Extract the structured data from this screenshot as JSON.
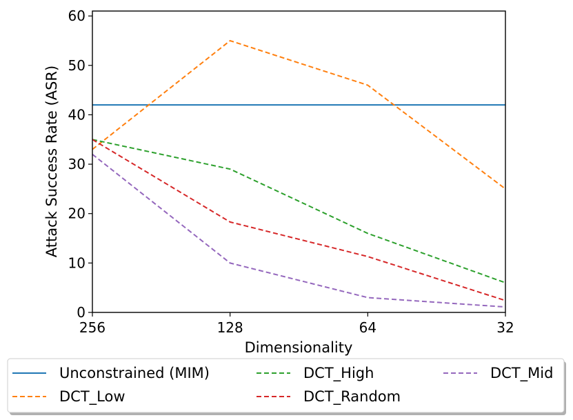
{
  "chart_data": {
    "type": "line",
    "title": "",
    "xlabel": "Dimensionality",
    "ylabel": "Attack Success Rate (ASR)",
    "categories": [
      "256",
      "128",
      "64",
      "32"
    ],
    "ylim": [
      0,
      61
    ],
    "yticks": [
      0,
      10,
      20,
      30,
      40,
      50,
      60
    ],
    "grid": false,
    "legend_position": "bottom",
    "series": [
      {
        "name": "Unconstrained (MIM)",
        "values": [
          42,
          42,
          42,
          42
        ],
        "color": "#1f77b4",
        "style": "solid"
      },
      {
        "name": "DCT_Low",
        "values": [
          33,
          55,
          46,
          25
        ],
        "color": "#ff7f0e",
        "style": "dashed"
      },
      {
        "name": "DCT_High",
        "values": [
          35,
          29,
          16,
          6
        ],
        "color": "#2ca02c",
        "style": "dashed"
      },
      {
        "name": "DCT_Random",
        "values": [
          35,
          18.3,
          11.3,
          2.4
        ],
        "color": "#d62728",
        "style": "dashed"
      },
      {
        "name": "DCT_Mid",
        "values": [
          32,
          10,
          3,
          1.1
        ],
        "color": "#9467bd",
        "style": "dashed"
      }
    ]
  }
}
